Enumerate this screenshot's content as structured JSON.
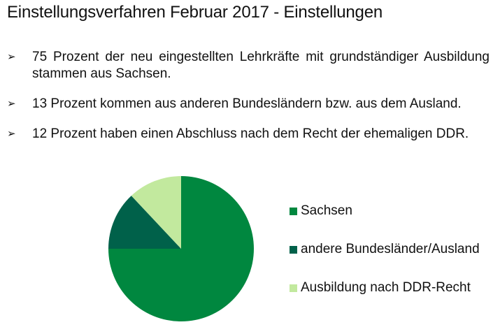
{
  "title": "Einstellungsverfahren Februar 2017 - Einstellungen",
  "bullets": [
    {
      "icon": "arrow-bullet-icon",
      "text": "75 Prozent der neu eingestellten Lehrkräfte mit grundständiger Ausbildung stammen aus Sachsen."
    },
    {
      "icon": "arrow-bullet-icon",
      "text": "13 Prozent kommen aus anderen Bundesländern bzw. aus dem Ausland."
    },
    {
      "icon": "arrow-bullet-icon",
      "text": "12 Prozent haben einen Abschluss nach dem Recht der ehemaligen DDR."
    }
  ],
  "legend": [
    {
      "label": "Sachsen",
      "color": "#00873f"
    },
    {
      "label": "andere Bundesländer/Ausland",
      "color": "#00614a"
    },
    {
      "label": "Ausbildung nach DDR-Recht",
      "color": "#c2e99e"
    }
  ],
  "chart_data": {
    "type": "pie",
    "title": "Einstellungsverfahren Februar 2017 - Einstellungen",
    "categories": [
      "Sachsen",
      "andere Bundesländer/Ausland",
      "Ausbildung nach DDR-Recht"
    ],
    "values": [
      75,
      13,
      12
    ],
    "unit": "%",
    "colors": [
      "#00873f",
      "#00614a",
      "#c2e99e"
    ],
    "start_angle": "12 o'clock, clockwise",
    "legend_position": "right"
  }
}
